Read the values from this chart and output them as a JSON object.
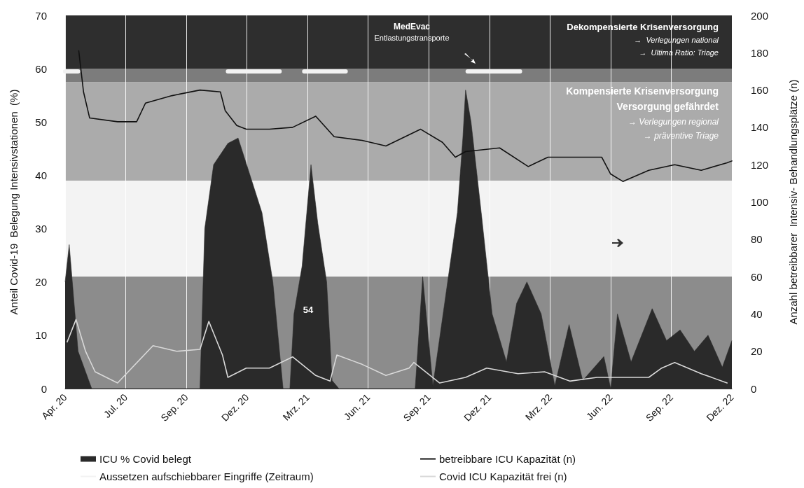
{
  "chart_data": {
    "type": "line",
    "ylabel": "Anteil Covid-19  Belegung Intensivstationen  (%)",
    "y2label": "Anzahl betreibbarer  Intensiv- Behandlungsplätze (n)",
    "xlim": [
      "2020-04-05",
      "2022-12-10"
    ],
    "xticks": [
      {
        "value": "2020-04-05",
        "label": "Apr. 20"
      },
      {
        "value": "2020-07-03",
        "label": "Jul. 20"
      },
      {
        "value": "2020-09-30",
        "label": "Sep. 20"
      },
      {
        "value": "2020-12-28",
        "label": "Dez. 20"
      },
      {
        "value": "2021-03-27",
        "label": "Mrz. 21"
      },
      {
        "value": "2021-06-24",
        "label": "Jun. 21"
      },
      {
        "value": "2021-09-21",
        "label": "Sep. 21"
      },
      {
        "value": "2021-12-19",
        "label": "Dez. 21"
      },
      {
        "value": "2022-03-18",
        "label": "Mrz. 22"
      },
      {
        "value": "2022-06-15",
        "label": "Jun. 22"
      },
      {
        "value": "2022-09-12",
        "label": "Sep. 22"
      },
      {
        "value": "2022-12-10",
        "label": "Dez. 22"
      }
    ],
    "ylim": [
      0,
      70
    ],
    "yticks": [
      0,
      10,
      20,
      30,
      40,
      50,
      60,
      70
    ],
    "y2lim": [
      0,
      200
    ],
    "y2ticks": [
      0,
      20,
      40,
      60,
      80,
      100,
      120,
      140,
      160,
      180,
      200
    ],
    "grid": "x",
    "legend": "bottom",
    "bands": [
      {
        "axis": "y",
        "from": 0,
        "to": 21,
        "color": "#8c8c8c"
      },
      {
        "axis": "y",
        "from": 21,
        "to": 39,
        "color": "#f3f3f3"
      },
      {
        "axis": "y",
        "from": 39,
        "to": 57.5,
        "color": "#ababab"
      },
      {
        "axis": "y",
        "from": 57.5,
        "to": 60,
        "color": "#7c7c7c"
      },
      {
        "axis": "y",
        "from": 60,
        "to": 70,
        "color": "#2e2e2e"
      }
    ],
    "series": [
      {
        "name": "ICU % Covid belegt",
        "type": "area",
        "color": "#2a2a2a",
        "x": [
          "2020-04-05",
          "2020-04-11",
          "2020-04-24",
          "2020-05-14",
          "2020-05-29",
          "2020-10-20",
          "2020-10-27",
          "2020-11-09",
          "2020-11-30",
          "2020-12-15",
          "2021-01-19",
          "2021-02-04",
          "2021-02-19",
          "2021-03-01",
          "2021-03-07",
          "2021-03-19",
          "2021-04-01",
          "2021-04-11",
          "2021-04-24",
          "2021-05-02",
          "2021-05-12",
          "2021-09-01",
          "2021-09-12",
          "2021-09-27",
          "2021-10-12",
          "2021-11-02",
          "2021-11-10",
          "2021-11-14",
          "2021-11-22",
          "2021-12-07",
          "2021-12-23",
          "2022-01-13",
          "2022-01-28",
          "2022-02-12",
          "2022-03-05",
          "2022-03-25",
          "2022-04-15",
          "2022-05-05",
          "2022-06-05",
          "2022-06-15",
          "2022-06-25",
          "2022-07-15",
          "2022-08-15",
          "2022-09-05",
          "2022-09-25",
          "2022-10-16",
          "2022-11-05",
          "2022-11-26",
          "2022-12-10"
        ],
        "values": [
          20,
          27,
          7,
          0,
          0,
          0,
          30,
          42,
          46,
          47,
          33,
          20,
          0,
          0,
          14,
          23,
          42,
          31,
          20,
          1.5,
          0,
          0,
          21,
          0.5,
          14,
          33,
          47,
          56,
          50,
          33,
          14,
          5,
          16,
          20,
          14,
          0.5,
          12,
          1.5,
          6,
          0,
          14,
          5,
          15,
          9,
          11,
          7,
          10,
          4,
          9
        ]
      },
      {
        "name": "Aussetzen aufschiebbarer Eingriffe (Zeitraum)",
        "color": "#f2f2f2",
        "x": [
          "2020-04-05",
          "2020-04-24",
          "2020-05-19",
          "2020-11-30",
          "2021-02-14",
          "2021-02-28",
          "2021-03-22",
          "2021-05-22",
          "2021-06-24",
          "2021-11-17",
          "2022-02-02"
        ],
        "values": [
          59.5,
          59.5,
          null,
          59.5,
          59.5,
          null,
          59.5,
          59.5,
          null,
          59.5,
          59.5
        ]
      },
      {
        "name": "betreibbare ICU Kapazität (n)",
        "axis": "y2",
        "color": "#111111",
        "x": [
          "2020-04-25",
          "2020-05-02",
          "2020-05-11",
          "2020-06-21",
          "2020-07-19",
          "2020-08-01",
          "2020-09-09",
          "2020-10-20",
          "2020-11-19",
          "2020-11-26",
          "2020-12-13",
          "2020-12-27",
          "2021-01-30",
          "2021-03-05",
          "2021-04-08",
          "2021-05-05",
          "2021-06-15",
          "2021-07-20",
          "2021-09-09",
          "2021-10-11",
          "2021-10-30",
          "2021-11-14",
          "2022-01-03",
          "2022-02-14",
          "2022-03-15",
          "2022-04-13",
          "2022-06-02",
          "2022-06-15",
          "2022-07-03",
          "2022-08-10",
          "2022-09-17",
          "2022-10-26",
          "2022-12-03",
          "2022-12-10"
        ],
        "values": [
          181,
          159,
          145,
          143,
          143,
          153,
          157,
          160,
          159,
          149,
          141,
          139,
          139,
          140,
          146,
          135,
          133,
          130,
          139,
          132,
          124,
          127,
          129,
          119,
          124,
          124,
          124,
          115,
          111,
          117,
          120,
          117,
          121,
          122
        ]
      },
      {
        "name": "Covid ICU Kapazität frei (n)",
        "axis": "y2",
        "color": "#d9d9d9",
        "x": [
          "2020-04-08",
          "2020-04-21",
          "2020-05-05",
          "2020-05-19",
          "2020-06-21",
          "2020-08-12",
          "2020-09-16",
          "2020-10-20",
          "2020-11-02",
          "2020-11-22",
          "2020-11-30",
          "2020-12-27",
          "2021-01-30",
          "2021-03-05",
          "2021-04-08",
          "2021-04-29",
          "2021-05-09",
          "2021-06-15",
          "2021-07-20",
          "2021-08-23",
          "2021-08-30",
          "2021-10-07",
          "2021-11-14",
          "2021-12-15",
          "2022-01-30",
          "2022-03-10",
          "2022-04-16",
          "2022-05-26",
          "2022-07-03",
          "2022-08-10",
          "2022-08-29",
          "2022-09-17",
          "2022-10-26",
          "2022-12-03"
        ],
        "values": [
          25,
          37,
          20,
          9,
          3,
          23,
          20,
          21,
          36,
          18,
          6,
          11,
          11,
          17,
          7,
          4,
          18,
          13,
          7,
          11,
          14,
          3,
          6,
          11,
          8,
          9,
          4,
          6,
          6,
          6,
          11,
          14,
          8,
          3
        ]
      }
    ],
    "annotations": [
      "MedEvac",
      "Entlastungstransporte",
      "Dekompensierte Krisenversorgung",
      "→  Verlegungen national",
      "→  Ultima Ratio: Triage",
      "Kompensierte Krisenversorgung",
      "Versorgung gefährdet",
      "→ Verlegungen regional",
      "→ präventive Triage",
      "54"
    ]
  }
}
